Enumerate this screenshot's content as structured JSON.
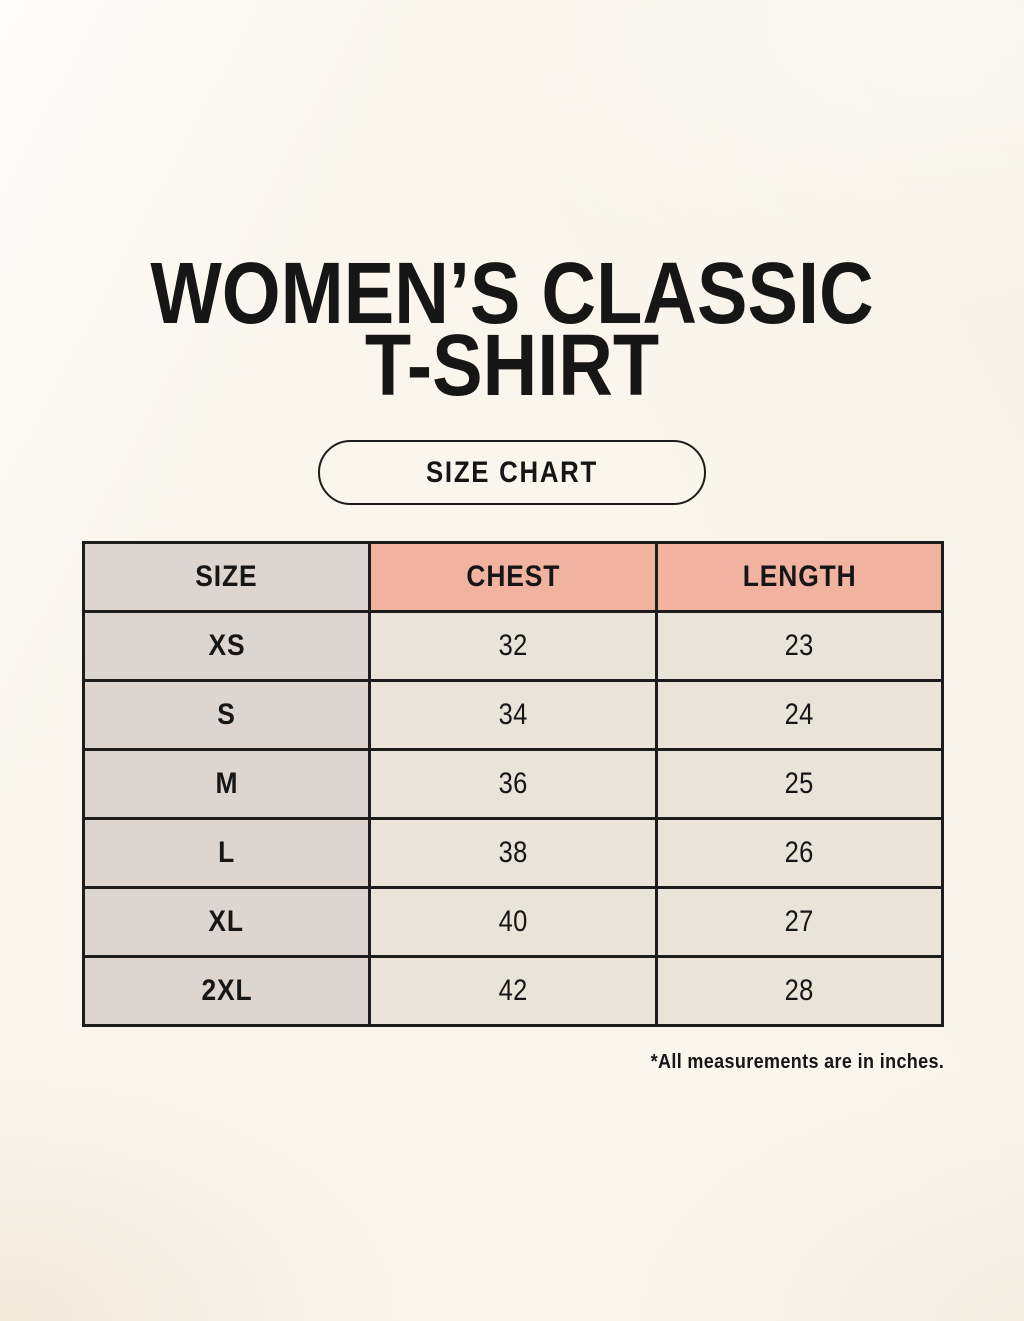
{
  "title": {
    "line1": "WOMEN’S CLASSIC",
    "line2": "T-SHIRT"
  },
  "badge": {
    "label": "SIZE CHART"
  },
  "footnote": "*All measurements are in inches.",
  "colors": {
    "bg": "#faf6ee",
    "pink": "#f1b3a0",
    "gray": "#ddd6d0",
    "cream": "#eae3d7",
    "line": "#1c1c1c",
    "ink": "#161616"
  },
  "chart_data": {
    "type": "table",
    "columns": [
      "SIZE",
      "CHEST",
      "LENGTH"
    ],
    "rows": [
      [
        "XS",
        "32",
        "23"
      ],
      [
        "S",
        "34",
        "24"
      ],
      [
        "M",
        "36",
        "25"
      ],
      [
        "L",
        "38",
        "26"
      ],
      [
        "XL",
        "40",
        "27"
      ],
      [
        "2XL",
        "42",
        "28"
      ]
    ],
    "units_note": "*All measurements are in inches."
  }
}
